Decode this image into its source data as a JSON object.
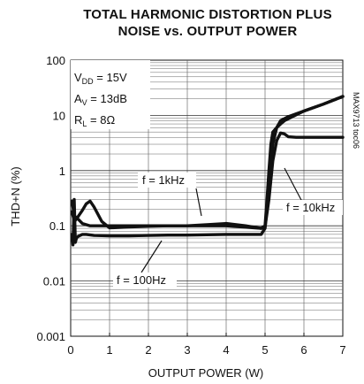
{
  "chart_data": {
    "type": "line",
    "title_line1": "TOTAL HARMONIC DISTORTION PLUS",
    "title_line2": "NOISE vs. OUTPUT POWER",
    "xlabel": "OUTPUT POWER (W)",
    "ylabel": "THD+N (%)",
    "xlim": [
      0,
      7
    ],
    "ylim": [
      0.001,
      100
    ],
    "y_scale": "log",
    "x_ticks": [
      "0",
      "1",
      "2",
      "3",
      "4",
      "5",
      "6",
      "7"
    ],
    "y_ticks": [
      "0.001",
      "0.01",
      "0.1",
      "1",
      "10",
      "100"
    ],
    "grid": true,
    "conditions": {
      "vdd_sym": "V",
      "vdd_sub": "DD",
      "vdd_val": " = 15V",
      "av_sym": "A",
      "av_sub": "V",
      "av_val": " = 13dB",
      "rl_sym": "R",
      "rl_sub": "L",
      "rl_val": " = 8Ω"
    },
    "part_number": "MAX9713 toc06",
    "series": [
      {
        "name": "f = 1kHz",
        "x": [
          0.03,
          0.1,
          0.2,
          0.3,
          0.4,
          0.5,
          0.6,
          0.8,
          1.0,
          1.5,
          2.0,
          2.5,
          3.0,
          3.5,
          4.0,
          4.5,
          4.9,
          5.0,
          5.05,
          5.1,
          5.15,
          5.2,
          5.3,
          5.4,
          5.5,
          6.0,
          6.5,
          7.0
        ],
        "y": [
          0.18,
          0.12,
          0.15,
          0.19,
          0.25,
          0.28,
          0.22,
          0.12,
          0.092,
          0.095,
          0.098,
          0.1,
          0.1,
          0.105,
          0.11,
          0.1,
          0.09,
          0.1,
          0.3,
          1.0,
          3.0,
          5.0,
          6.0,
          7.0,
          8.0,
          12.0,
          16.0,
          22.0
        ]
      },
      {
        "name": "f = 10kHz",
        "x": [
          0.03,
          0.1,
          0.2,
          0.3,
          0.5,
          1.0,
          2.0,
          3.0,
          4.0,
          4.9,
          5.0,
          5.1,
          5.2,
          5.3,
          5.4,
          5.5,
          5.6,
          5.8,
          6.0,
          6.5,
          7.0
        ],
        "y": [
          0.28,
          0.15,
          0.13,
          0.11,
          0.1,
          0.1,
          0.1,
          0.1,
          0.1,
          0.09,
          0.095,
          0.3,
          1.5,
          3.5,
          4.8,
          4.6,
          4.1,
          4.0,
          4.0,
          4.0,
          4.0
        ]
      },
      {
        "name": "f = 100Hz",
        "x": [
          0.03,
          0.06,
          0.09,
          0.12,
          0.15,
          0.2,
          0.3,
          0.4,
          0.6,
          1.0,
          1.5,
          2.0,
          2.5,
          3.0,
          3.5,
          4.0,
          4.5,
          4.9,
          5.0,
          5.1,
          5.2,
          5.3,
          5.4,
          5.6,
          6.0,
          6.5,
          7.0
        ],
        "y": [
          0.07,
          0.045,
          0.3,
          0.05,
          0.06,
          0.065,
          0.07,
          0.07,
          0.067,
          0.066,
          0.066,
          0.067,
          0.068,
          0.068,
          0.069,
          0.07,
          0.07,
          0.07,
          0.09,
          0.5,
          3.0,
          6.0,
          8.0,
          9.5,
          12.0,
          16.0,
          22.0
        ]
      }
    ],
    "annotations": [
      "f = 1kHz",
      "f = 10kHz",
      "f = 100Hz"
    ]
  }
}
